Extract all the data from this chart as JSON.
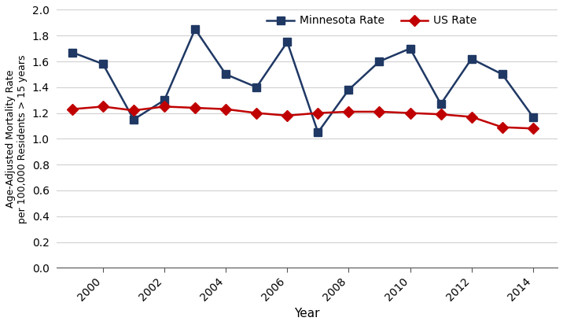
{
  "years": [
    1999,
    2000,
    2001,
    2002,
    2003,
    2004,
    2005,
    2006,
    2007,
    2008,
    2009,
    2010,
    2011,
    2012,
    2013,
    2014
  ],
  "minnesota_rate": [
    1.67,
    1.58,
    1.15,
    1.3,
    1.85,
    1.5,
    1.4,
    1.75,
    1.05,
    1.38,
    1.6,
    1.7,
    1.27,
    1.62,
    1.5,
    1.17
  ],
  "us_rate": [
    1.23,
    1.25,
    1.22,
    1.25,
    1.24,
    1.23,
    1.2,
    1.18,
    1.2,
    1.21,
    1.21,
    1.2,
    1.19,
    1.17,
    1.09,
    1.08
  ],
  "mn_color": "#1F3864",
  "us_color": "#C00000",
  "mn_label": "Minnesota Rate",
  "us_label": "US Rate",
  "xlabel": "Year",
  "ylabel": "Age-Adjusted Mortality Rate\nper 100,000 Residents > 15 years",
  "ylim": [
    0.0,
    2.0
  ],
  "yticks": [
    0.0,
    0.2,
    0.4,
    0.6,
    0.8,
    1.0,
    1.2,
    1.4,
    1.6,
    1.8,
    2.0
  ],
  "xticks": [
    2000,
    2002,
    2004,
    2006,
    2008,
    2010,
    2012,
    2014
  ],
  "xlim": [
    1998.5,
    2014.8
  ]
}
